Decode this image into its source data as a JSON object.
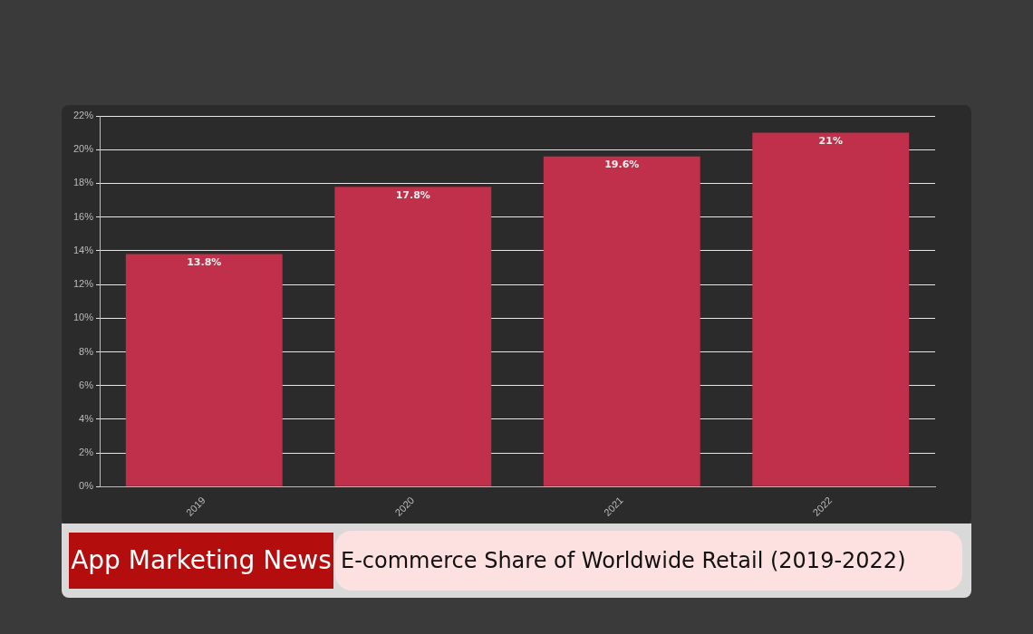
{
  "chart_data": {
    "type": "bar",
    "title": "E-commerce Share of Worldwide Retail (2019-2022)",
    "subtitle": "App Marketing News",
    "categories": [
      "2019",
      "2020",
      "2021",
      "2022"
    ],
    "values": [
      13.8,
      17.8,
      19.6,
      21
    ],
    "color": "#c0304a",
    "value_labels": [
      "13.8%",
      "17.8%",
      "19.6%",
      "21%"
    ],
    "ylim": [
      0,
      22
    ],
    "yticks": [
      {
        "value": 0,
        "label": "0%"
      },
      {
        "value": 2,
        "label": "2%"
      },
      {
        "value": 4,
        "label": "4%"
      },
      {
        "value": 6,
        "label": "6%"
      },
      {
        "value": 8,
        "label": "8%"
      },
      {
        "value": 10,
        "label": "10%"
      },
      {
        "value": 12,
        "label": "12%"
      },
      {
        "value": 14,
        "label": "14%"
      },
      {
        "value": 16,
        "label": "16%"
      },
      {
        "value": 18,
        "label": "18%"
      },
      {
        "value": 20,
        "label": "20%"
      },
      {
        "value": 22,
        "label": "22%"
      }
    ],
    "grid": "y"
  }
}
